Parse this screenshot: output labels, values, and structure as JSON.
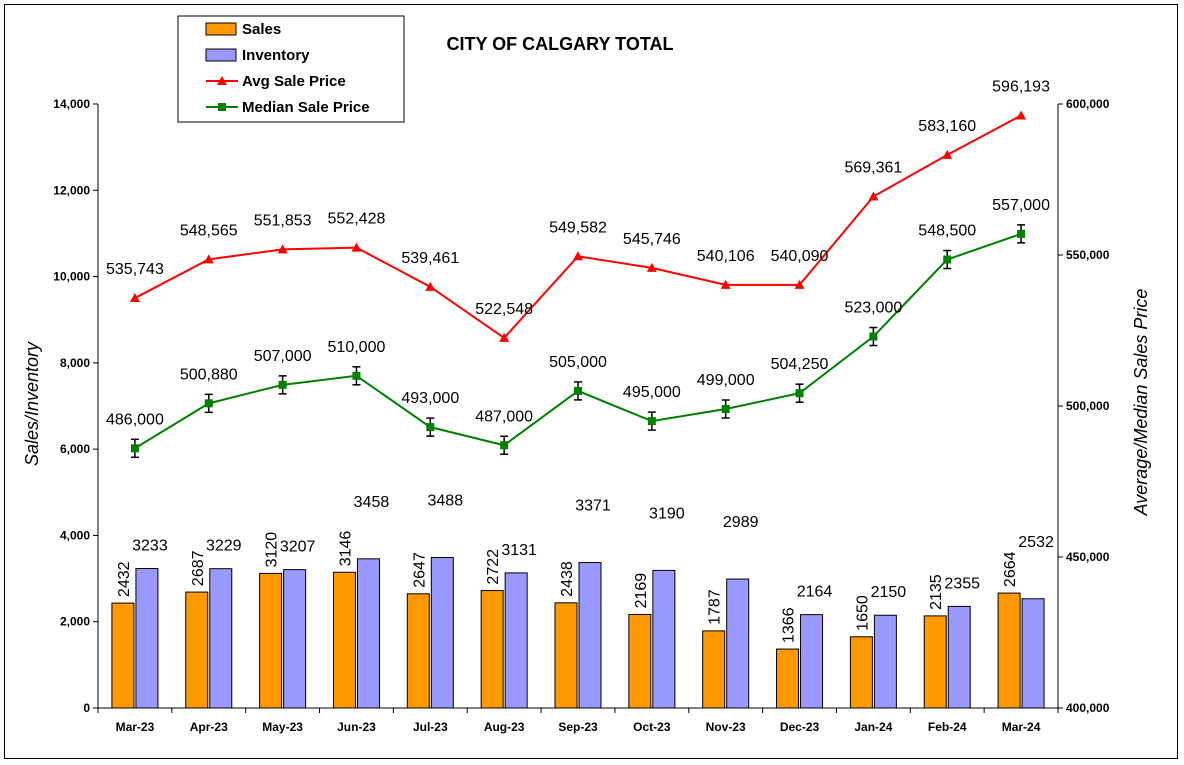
{
  "chart_data": {
    "type": "bar",
    "title": "CITY OF CALGARY TOTAL",
    "ylabel": "Sales/Inventory",
    "y2label": "Average/Median Sales Price",
    "xlabel": "",
    "categories": [
      "Mar-23",
      "Apr-23",
      "May-23",
      "Jun-23",
      "Jul-23",
      "Aug-23",
      "Sep-23",
      "Oct-23",
      "Nov-23",
      "Dec-23",
      "Jan-24",
      "Feb-24",
      "Mar-24"
    ],
    "ylim": [
      0,
      14000
    ],
    "y2lim": [
      400000,
      600000
    ],
    "yticks": [
      "0",
      "2,000",
      "4,000",
      "6,000",
      "8,000",
      "10,000",
      "12,000",
      "14,000"
    ],
    "y2ticks": [
      "400,000",
      "450,000",
      "500,000",
      "550,000",
      "600,000"
    ],
    "legend_position": "top-left",
    "series": [
      {
        "name": "Sales",
        "kind": "bar",
        "axis": "left",
        "color": "#FF9900",
        "values": [
          2432,
          2687,
          3120,
          3146,
          2647,
          2722,
          2438,
          2169,
          1787,
          1366,
          1650,
          2135,
          2664
        ],
        "labels": [
          "2432",
          "2687",
          "3120",
          "3146",
          "2647",
          "2722",
          "2438",
          "2169",
          "1787",
          "1366",
          "1650",
          "2135",
          "2664"
        ]
      },
      {
        "name": "Inventory",
        "kind": "bar",
        "axis": "left",
        "color": "#9999FF",
        "values": [
          3233,
          3229,
          3207,
          3458,
          3488,
          3131,
          3371,
          3190,
          2989,
          2164,
          2150,
          2355,
          2532
        ],
        "labels": [
          "3233",
          "3229",
          "3207",
          "3458",
          "3488",
          "3131",
          "3371",
          "3190",
          "2989",
          "2164",
          "2150",
          "2355",
          "2532"
        ]
      },
      {
        "name": "Avg Sale Price",
        "kind": "line",
        "axis": "right",
        "color": "#FF0000",
        "marker": "triangle",
        "values": [
          535743,
          548565,
          551853,
          552428,
          539461,
          522548,
          549582,
          545746,
          540106,
          540090,
          569361,
          583160,
          596193
        ],
        "labels": [
          "535,743",
          "548,565",
          "551,853",
          "552,428",
          "539,461",
          "522,548",
          "549,582",
          "545,746",
          "540,106",
          "540,090",
          "569,361",
          "583,160",
          "596,193"
        ]
      },
      {
        "name": "Median Sale Price",
        "kind": "line",
        "axis": "right",
        "color": "#008000",
        "marker": "square",
        "error_bars": true,
        "values": [
          486000,
          500880,
          507000,
          510000,
          493000,
          487000,
          505000,
          495000,
          499000,
          504250,
          523000,
          548500,
          557000
        ],
        "labels": [
          "486,000",
          "500,880",
          "507,000",
          "510,000",
          "493,000",
          "487,000",
          "505,000",
          "495,000",
          "499,000",
          "504,250",
          "523,000",
          "548,500",
          "557,000"
        ]
      }
    ]
  }
}
